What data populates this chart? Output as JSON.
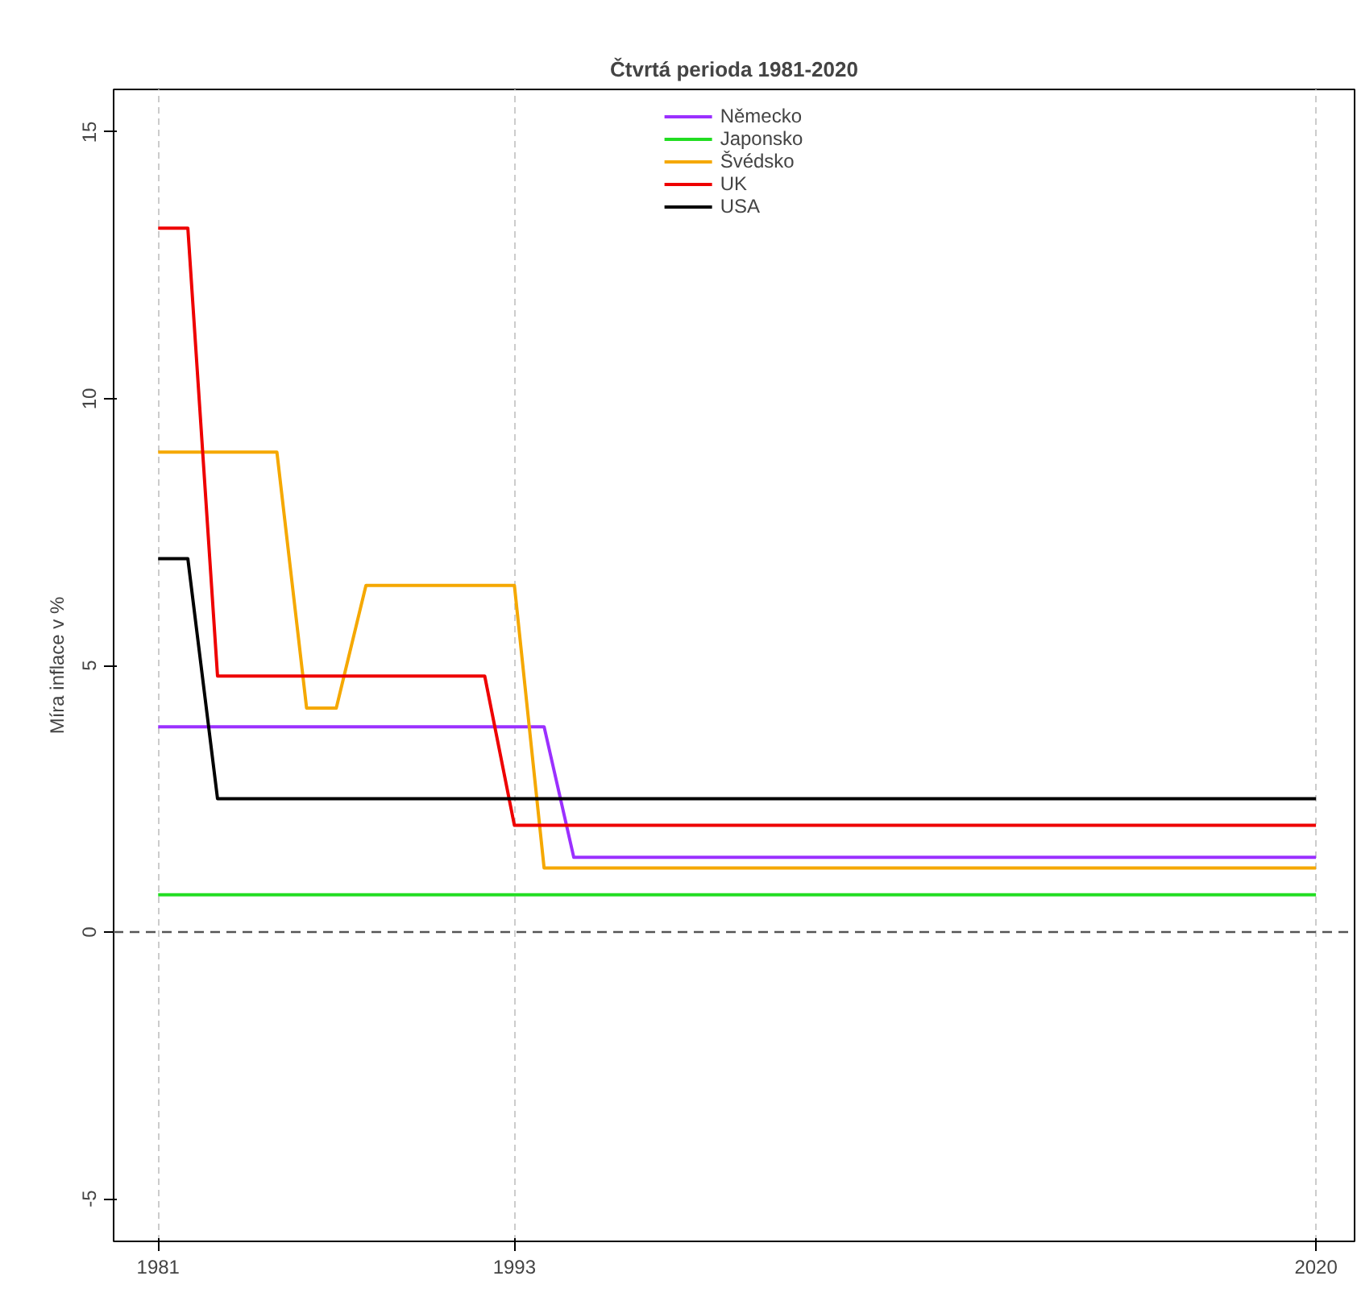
{
  "chart_data": {
    "type": "line",
    "title": "Čtvrtá perioda 1981-2020",
    "ylabel": "Míra inflace v %",
    "xlim": [
      1979.5,
      2021.3
    ],
    "ylim": [
      -5.8,
      15.8
    ],
    "xticks": [
      1981,
      1993,
      2020
    ],
    "yticks": [
      -5,
      0,
      5,
      10,
      15
    ],
    "grid": "x",
    "legend": "top",
    "line_style": "solid",
    "ref_lines": [
      {
        "axis": "y",
        "value": 0,
        "color": "#555555",
        "line_style": "dashed"
      }
    ],
    "series": [
      {
        "name": "Německo",
        "color": "#9b30ff",
        "x": [
          1981,
          1994,
          1995,
          2020
        ],
        "values": [
          3.85,
          3.85,
          1.4,
          1.4
        ]
      },
      {
        "name": "Japonsko",
        "color": "#22dd22",
        "x": [
          1981,
          2020
        ],
        "values": [
          0.7,
          0.7
        ]
      },
      {
        "name": "Švédsko",
        "color": "#f5a800",
        "x": [
          1981,
          1985,
          1986,
          1987,
          1988,
          1993,
          1994,
          2020
        ],
        "values": [
          9.0,
          9.0,
          4.2,
          4.2,
          6.5,
          6.5,
          1.2,
          1.2
        ]
      },
      {
        "name": "UK",
        "color": "#ee0000",
        "x": [
          1981,
          1982,
          1983,
          1992,
          1993,
          2020
        ],
        "values": [
          13.2,
          13.2,
          4.8,
          4.8,
          2.0,
          2.0
        ]
      },
      {
        "name": "USA",
        "color": "#000000",
        "x": [
          1981,
          1982,
          1983,
          2020
        ],
        "values": [
          7.0,
          7.0,
          2.5,
          2.5
        ]
      }
    ]
  }
}
